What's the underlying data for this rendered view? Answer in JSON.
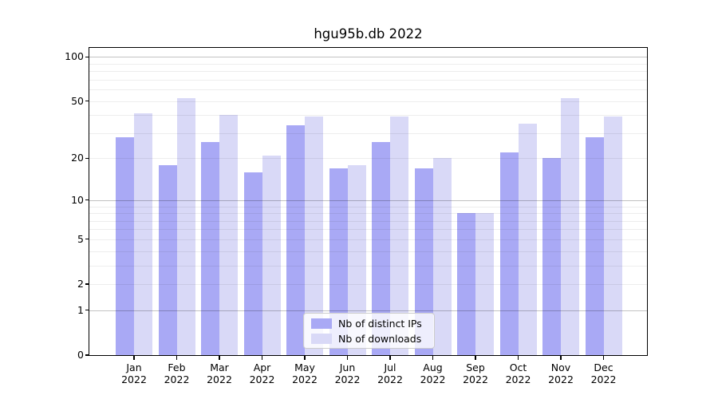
{
  "title": "hgu95b.db 2022",
  "chart_data": {
    "type": "bar",
    "title": "hgu95b.db 2022",
    "categories": [
      "Jan 2022",
      "Feb 2022",
      "Mar 2022",
      "Apr 2022",
      "May 2022",
      "Jun 2022",
      "Jul 2022",
      "Aug 2022",
      "Sep 2022",
      "Oct 2022",
      "Nov 2022",
      "Dec 2022"
    ],
    "months": [
      "Jan",
      "Feb",
      "Mar",
      "Apr",
      "May",
      "Jun",
      "Jul",
      "Aug",
      "Sep",
      "Oct",
      "Nov",
      "Dec"
    ],
    "year": "2022",
    "series": [
      {
        "name": "Nb of distinct IPs",
        "color": "#a9a9f5",
        "values": [
          28,
          18,
          26,
          16,
          34,
          17,
          26,
          17,
          8,
          22,
          20,
          28
        ]
      },
      {
        "name": "Nb of downloads",
        "color": "#d9d9f7",
        "values": [
          41,
          52,
          40,
          21,
          39,
          18,
          39,
          20,
          8,
          35,
          52,
          39
        ]
      }
    ],
    "yscale": "log1p",
    "ylim": [
      0,
      115
    ],
    "y_ticks": [
      0,
      1,
      2,
      5,
      10,
      20,
      50,
      100
    ],
    "y_tick_labels": [
      "0",
      "1",
      "2",
      "5",
      "10",
      "20",
      "50",
      "100"
    ],
    "grid": true,
    "grid_major": [
      1,
      10,
      100
    ],
    "grid_minor": [
      2,
      3,
      4,
      5,
      6,
      7,
      8,
      9,
      20,
      30,
      40,
      50,
      60,
      70,
      80,
      90
    ],
    "legend_position": "lower center"
  },
  "colors": {
    "bar_distinct_ips": "#a9a9f5",
    "bar_downloads": "#d9d9f7",
    "grid_major": "#c2c2c2",
    "grid_minor": "#ededed",
    "spine": "#000000",
    "legend_border": "#cccccc"
  }
}
